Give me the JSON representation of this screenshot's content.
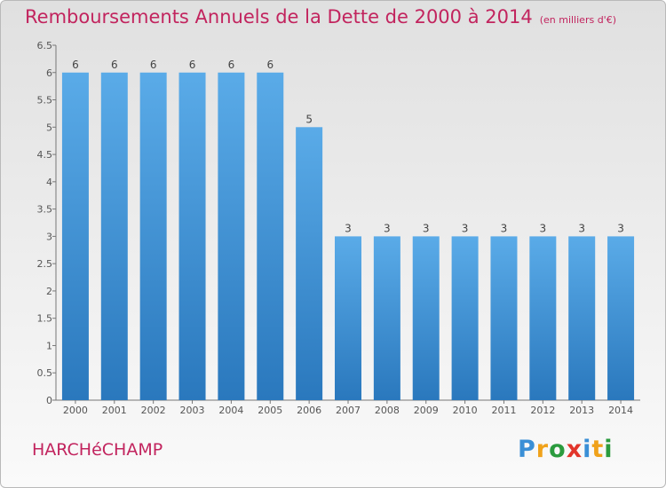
{
  "title": "Remboursements Annuels de la Dette de 2000 à 2014",
  "unit_label": "(en milliers d'€)",
  "town": "HARCHéCHAMP",
  "logo": {
    "letters": [
      "P",
      "r",
      "o",
      "x",
      "i",
      "t",
      "i"
    ],
    "colors": [
      "#3a8fd6",
      "#f0a21b",
      "#2b9b3e",
      "#e2352b",
      "#3a8fd6",
      "#f0a21b",
      "#2b9b3e"
    ]
  },
  "chart_data": {
    "type": "bar",
    "categories": [
      "2000",
      "2001",
      "2002",
      "2003",
      "2004",
      "2005",
      "2006",
      "2007",
      "2008",
      "2009",
      "2010",
      "2011",
      "2012",
      "2013",
      "2014"
    ],
    "values": [
      6,
      6,
      6,
      6,
      6,
      6,
      5,
      3,
      3,
      3,
      3,
      3,
      3,
      3,
      3
    ],
    "data_labels": [
      "6",
      "6",
      "6",
      "6",
      "6",
      "6",
      "5",
      "3",
      "3",
      "3",
      "3",
      "3",
      "3",
      "3",
      "3"
    ],
    "yticks": [
      0,
      0.5,
      1,
      1.5,
      2,
      2.5,
      3,
      3.5,
      4,
      4.5,
      5,
      5.5,
      6,
      6.5
    ],
    "ytick_labels": [
      "0",
      "0.5",
      "1",
      "1.5",
      "2",
      "2.5",
      "3",
      "3.5",
      "4",
      "4.5",
      "5",
      "5.5",
      "6",
      "6.5"
    ],
    "ylim": [
      0,
      6.5
    ],
    "grid": false,
    "bar_color_top": "#5aabe8",
    "bar_color_bottom": "#2a78bd"
  }
}
